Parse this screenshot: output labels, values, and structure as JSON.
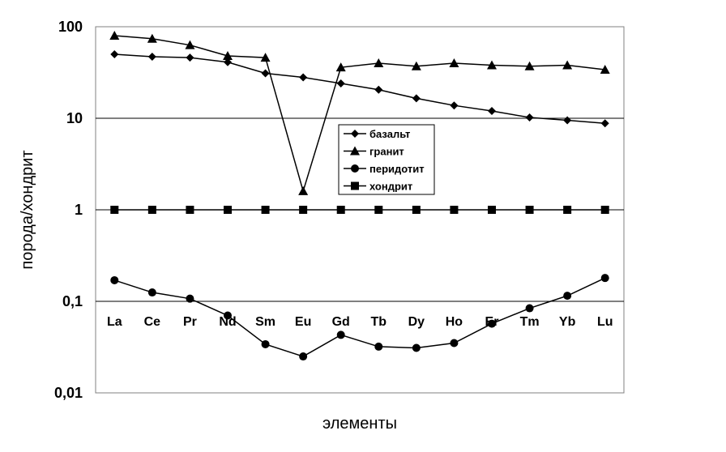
{
  "chart_data": {
    "type": "line",
    "title": "",
    "xlabel": "элементы",
    "ylabel": "порода/хондрит",
    "y_scale": "log",
    "ylim": [
      0.01,
      100
    ],
    "y_ticks": [
      {
        "value": 100,
        "label": "100"
      },
      {
        "value": 10,
        "label": "10"
      },
      {
        "value": 1,
        "label": "1"
      },
      {
        "value": 0.1,
        "label": "0,1"
      },
      {
        "value": 0.01,
        "label": "0,01"
      }
    ],
    "categories": [
      "La",
      "Ce",
      "Pr",
      "Nd",
      "Sm",
      "Eu",
      "Gd",
      "Tb",
      "Dy",
      "Ho",
      "Er",
      "Tm",
      "Yb",
      "Lu"
    ],
    "grid": "horizontal major",
    "legend_position": "center",
    "series": [
      {
        "name": "базальт",
        "marker": "diamond",
        "values": [
          50,
          47,
          46,
          41,
          31,
          28,
          24,
          20.5,
          16.5,
          13.8,
          12,
          10.2,
          9.5,
          8.8
        ]
      },
      {
        "name": "гранит",
        "marker": "triangle",
        "values": [
          80,
          74,
          63,
          48,
          46,
          1.6,
          36,
          40,
          37,
          40,
          38,
          37,
          38,
          34
        ]
      },
      {
        "name": "перидотит",
        "marker": "circle",
        "values": [
          0.17,
          0.125,
          0.107,
          0.07,
          0.034,
          0.025,
          0.043,
          0.032,
          0.031,
          0.035,
          0.057,
          0.084,
          0.115,
          0.18
        ]
      },
      {
        "name": "хондрит",
        "marker": "square",
        "values": [
          1,
          1,
          1,
          1,
          1,
          1,
          1,
          1,
          1,
          1,
          1,
          1,
          1,
          1
        ]
      }
    ]
  }
}
